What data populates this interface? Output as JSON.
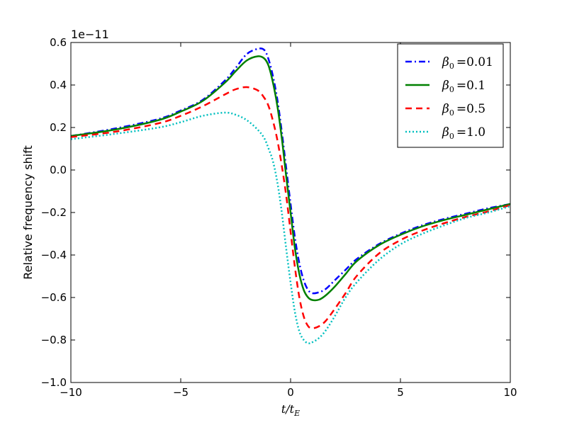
{
  "chart_data": {
    "type": "line",
    "xlabel": "t/t_E",
    "ylabel": "Relative frequency shift",
    "y_multiplier": "1e−11",
    "xlim": [
      -10,
      10
    ],
    "ylim": [
      -1.0,
      0.6
    ],
    "x_ticks": [
      -10,
      -5,
      0,
      5,
      10
    ],
    "x_tick_labels": [
      "−10",
      "−5",
      "0",
      "5",
      "10"
    ],
    "y_ticks": [
      -1.0,
      -0.8,
      -0.6,
      -0.4,
      -0.2,
      0.0,
      0.2,
      0.4,
      0.6
    ],
    "y_tick_labels": [
      "−1.0",
      "−0.8",
      "−0.6",
      "−0.4",
      "−0.2",
      "0.0",
      "0.2",
      "0.4",
      "0.6"
    ],
    "grid": false,
    "legend_position": "top-right",
    "series": [
      {
        "name": "β0 = 0.01",
        "legend_symbol": "β",
        "legend_subscript": "0",
        "legend_value": "=0.01",
        "color": "#0000ff",
        "style": "dashdot",
        "x": [
          -10,
          -8,
          -6,
          -5,
          -4,
          -3,
          -2.5,
          -2,
          -1.5,
          -1.2,
          -1.0,
          -0.8,
          -0.6,
          -0.4,
          -0.2,
          0.0,
          0.2,
          0.4,
          0.6,
          0.8,
          1.0,
          1.3,
          1.6,
          2.0,
          2.5,
          3,
          4,
          5,
          6,
          7,
          8,
          9,
          10
        ],
        "y": [
          0.16,
          0.195,
          0.24,
          0.28,
          0.33,
          0.42,
          0.48,
          0.545,
          0.57,
          0.565,
          0.52,
          0.44,
          0.33,
          0.18,
          0.01,
          -0.16,
          -0.32,
          -0.44,
          -0.52,
          -0.565,
          -0.58,
          -0.575,
          -0.56,
          -0.52,
          -0.47,
          -0.42,
          -0.35,
          -0.3,
          -0.26,
          -0.23,
          -0.205,
          -0.18,
          -0.16
        ]
      },
      {
        "name": "β0 = 0.1",
        "legend_symbol": "β",
        "legend_subscript": "0",
        "legend_value": "=0.1",
        "color": "#008000",
        "style": "solid",
        "x": [
          -10,
          -8,
          -6,
          -5,
          -4,
          -3,
          -2.5,
          -2,
          -1.5,
          -1.2,
          -1.0,
          -0.8,
          -0.6,
          -0.4,
          -0.2,
          0.0,
          0.2,
          0.4,
          0.6,
          0.8,
          1.0,
          1.3,
          1.6,
          2.0,
          2.5,
          3,
          4,
          5,
          6,
          7,
          8,
          9,
          10
        ],
        "y": [
          0.16,
          0.19,
          0.235,
          0.275,
          0.325,
          0.41,
          0.465,
          0.515,
          0.535,
          0.525,
          0.49,
          0.41,
          0.3,
          0.15,
          -0.03,
          -0.2,
          -0.37,
          -0.49,
          -0.565,
          -0.6,
          -0.612,
          -0.61,
          -0.59,
          -0.55,
          -0.49,
          -0.43,
          -0.355,
          -0.305,
          -0.265,
          -0.235,
          -0.21,
          -0.185,
          -0.16
        ]
      },
      {
        "name": "β0 = 0.5",
        "legend_symbol": "β",
        "legend_subscript": "0",
        "legend_value": "=0.5",
        "color": "#ff0000",
        "style": "dashed",
        "x": [
          -10,
          -8,
          -6,
          -5,
          -4,
          -3,
          -2.5,
          -2,
          -1.5,
          -1.2,
          -1.0,
          -0.8,
          -0.6,
          -0.4,
          -0.2,
          0.0,
          0.2,
          0.4,
          0.6,
          0.8,
          1.0,
          1.3,
          1.6,
          2.0,
          2.5,
          3,
          4,
          5,
          6,
          7,
          8,
          9,
          10
        ],
        "y": [
          0.155,
          0.18,
          0.22,
          0.255,
          0.3,
          0.355,
          0.38,
          0.39,
          0.375,
          0.34,
          0.3,
          0.23,
          0.14,
          0.02,
          -0.12,
          -0.29,
          -0.46,
          -0.6,
          -0.69,
          -0.735,
          -0.745,
          -0.735,
          -0.71,
          -0.655,
          -0.58,
          -0.5,
          -0.395,
          -0.33,
          -0.285,
          -0.25,
          -0.22,
          -0.195,
          -0.165
        ]
      },
      {
        "name": "β0 = 1.0",
        "legend_symbol": "β",
        "legend_subscript": "0",
        "legend_value": "=1.0",
        "color": "#00bfbf",
        "style": "dotted",
        "x": [
          -10,
          -8,
          -6,
          -5,
          -4,
          -3,
          -2.5,
          -2,
          -1.5,
          -1.2,
          -1.0,
          -0.8,
          -0.6,
          -0.4,
          -0.2,
          0.0,
          0.2,
          0.4,
          0.6,
          0.8,
          1.0,
          1.3,
          1.6,
          2.0,
          2.5,
          3,
          4,
          5,
          6,
          7,
          8,
          9,
          10
        ],
        "y": [
          0.145,
          0.17,
          0.2,
          0.225,
          0.255,
          0.27,
          0.26,
          0.235,
          0.19,
          0.15,
          0.1,
          0.04,
          -0.06,
          -0.2,
          -0.37,
          -0.53,
          -0.67,
          -0.76,
          -0.8,
          -0.815,
          -0.81,
          -0.79,
          -0.755,
          -0.69,
          -0.6,
          -0.53,
          -0.425,
          -0.35,
          -0.3,
          -0.26,
          -0.225,
          -0.2,
          -0.17
        ]
      }
    ]
  }
}
